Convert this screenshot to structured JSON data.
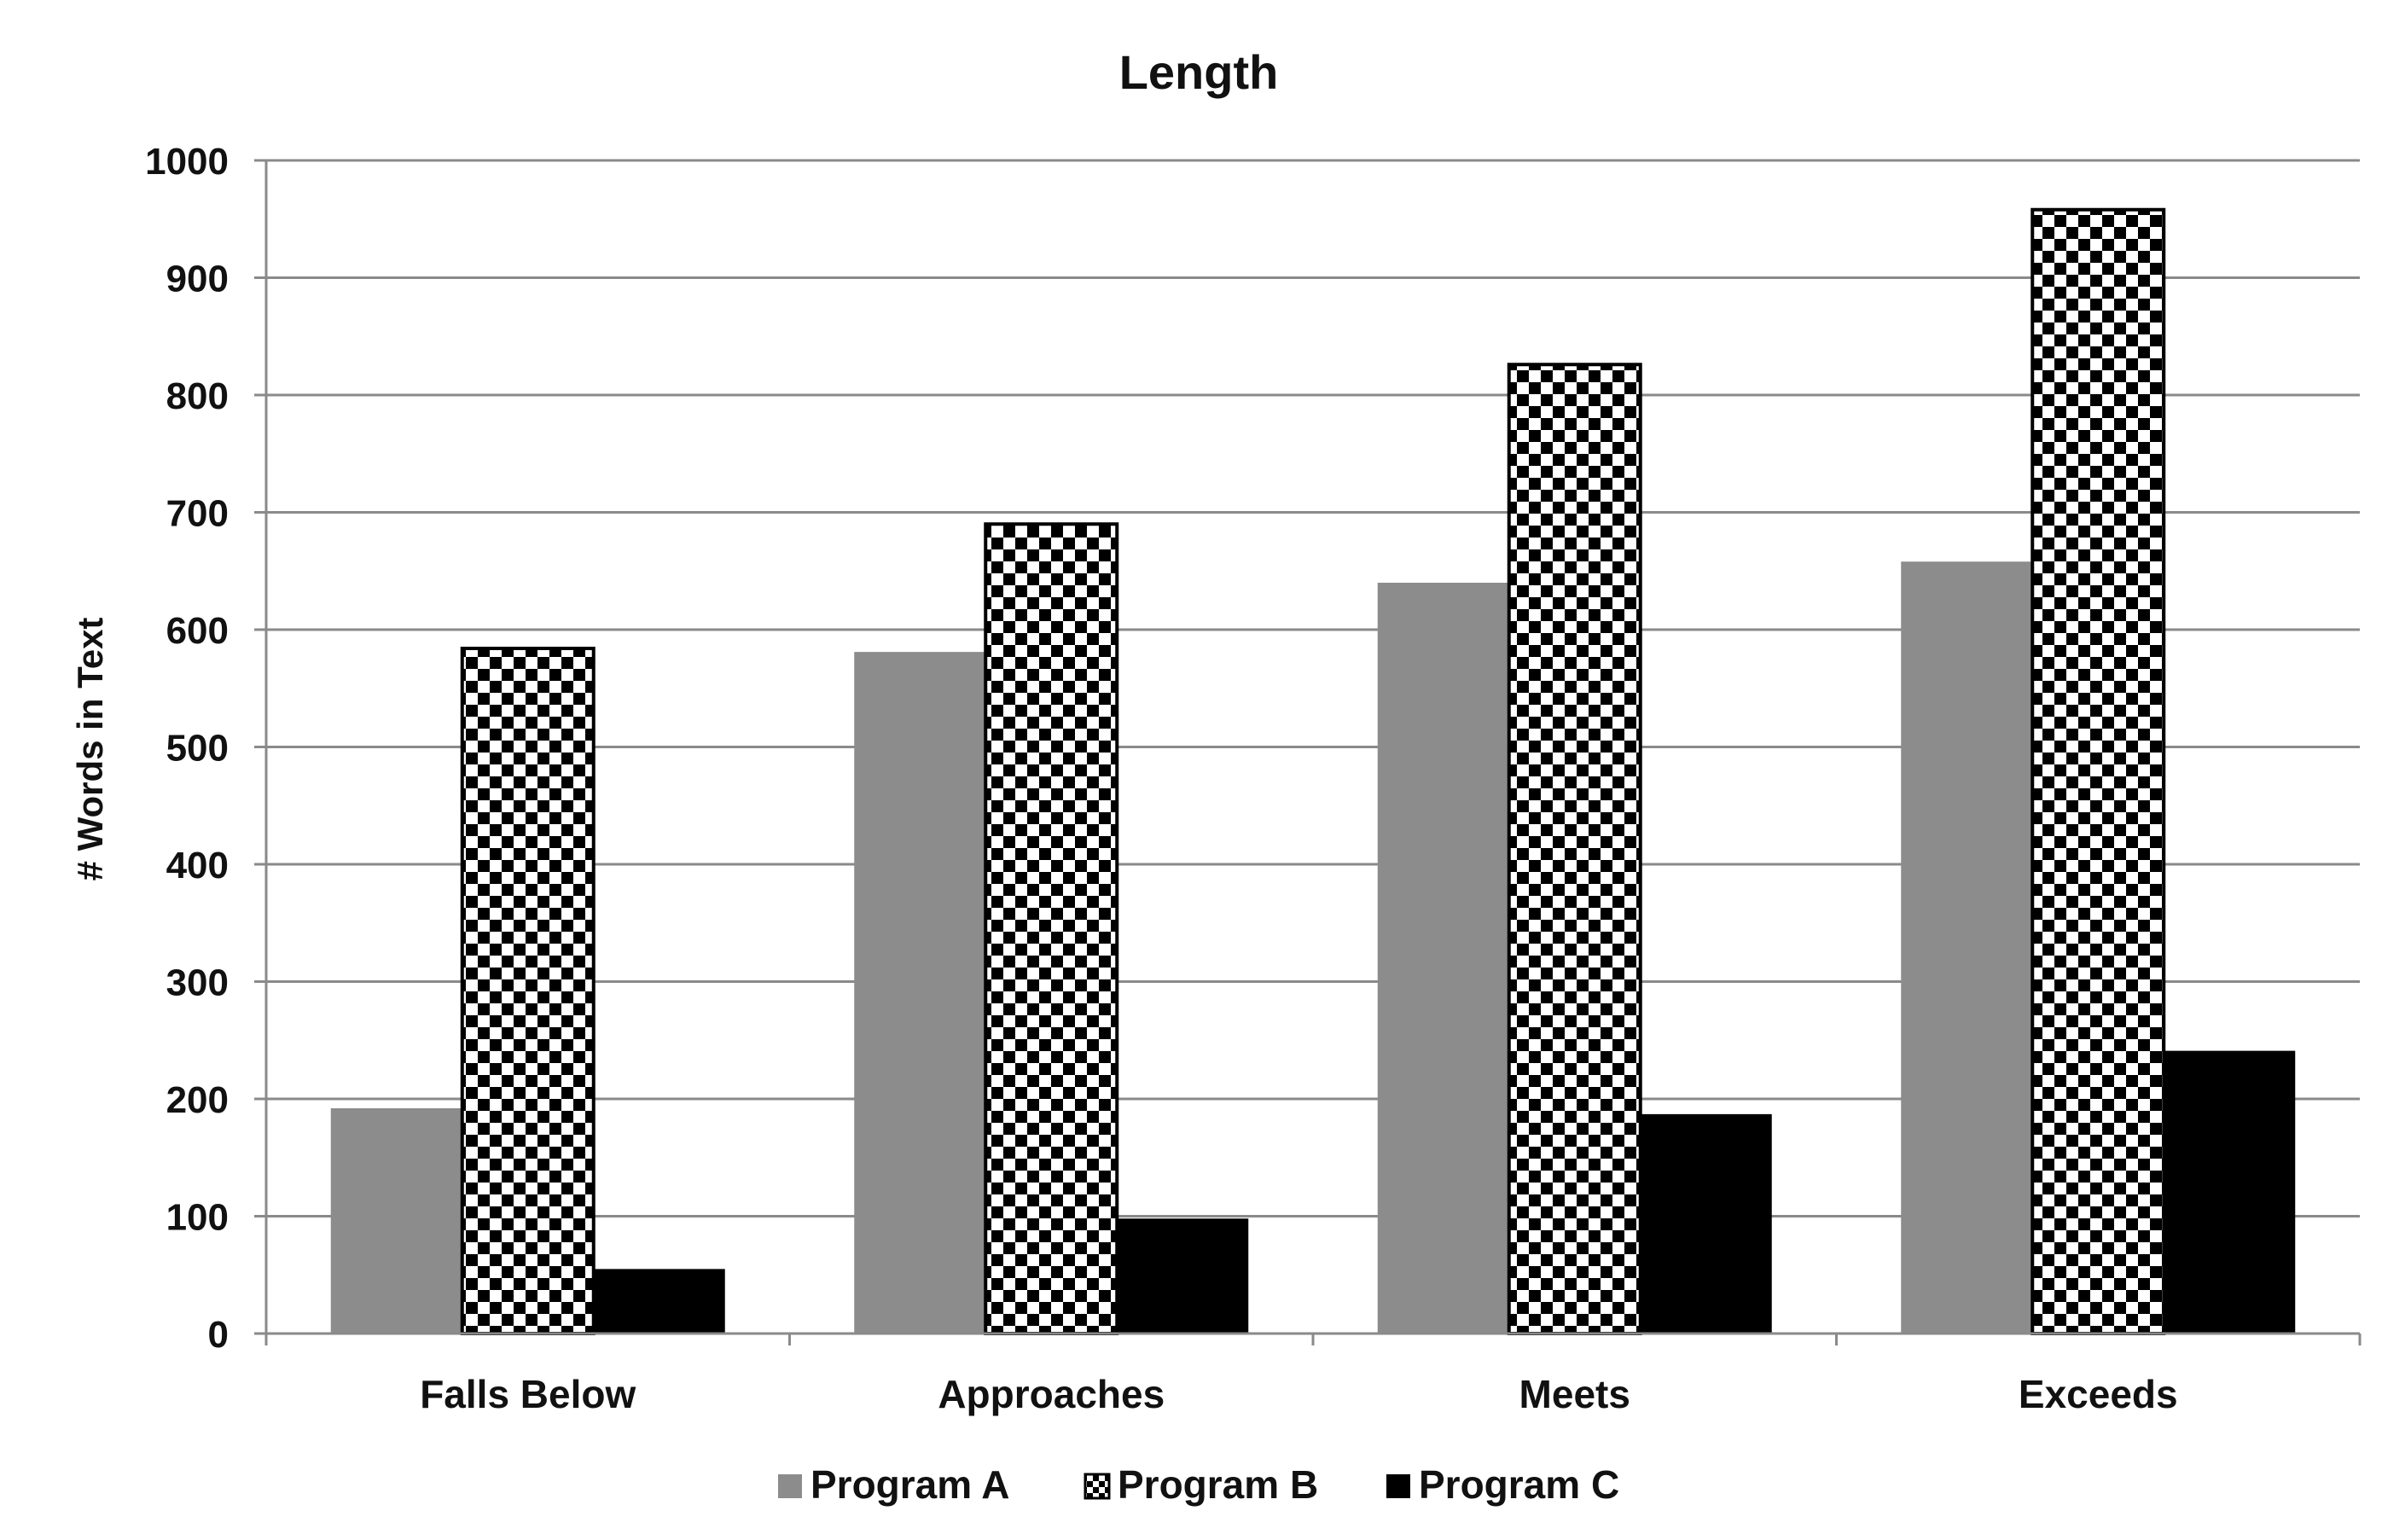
{
  "chart_data": {
    "type": "bar",
    "title": "Length",
    "xlabel": "",
    "ylabel": "# Words in Text",
    "categories": [
      "Falls Below",
      "Approaches",
      "Meets",
      "Exceeds"
    ],
    "series": [
      {
        "name": "Program A",
        "values": [
          192,
          581,
          640,
          658
        ],
        "fill": "#8c8c8c",
        "pattern": "solid"
      },
      {
        "name": "Program B",
        "values": [
          584,
          690,
          826,
          958
        ],
        "fill": "#000000",
        "pattern": "checkerboard"
      },
      {
        "name": "Program C",
        "values": [
          55,
          98,
          187,
          241
        ],
        "fill": "#000000",
        "pattern": "solid"
      }
    ],
    "ylim": [
      0,
      1000
    ],
    "yticks": [
      0,
      100,
      200,
      300,
      400,
      500,
      600,
      700,
      800,
      900,
      1000
    ],
    "grid": true,
    "legend": "bottom-center",
    "colors": {
      "gridline": "#8a8a8a",
      "axis": "#8a8a8a",
      "text": "#111111"
    }
  }
}
